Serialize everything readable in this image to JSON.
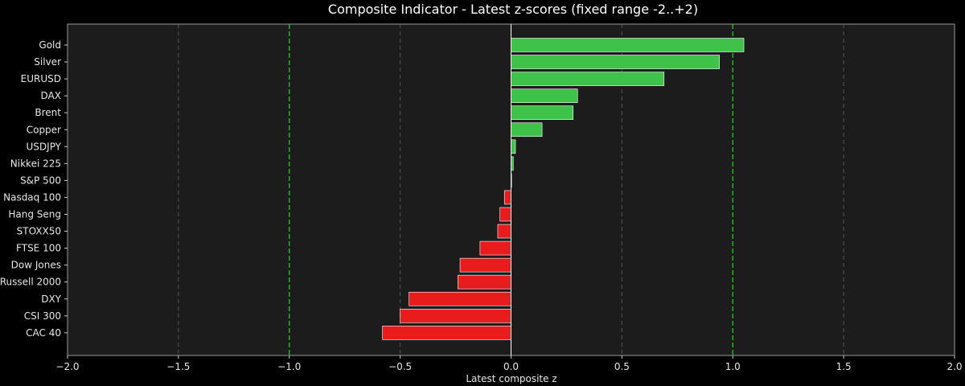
{
  "chart_data": {
    "type": "bar",
    "orientation": "horizontal",
    "title": "Composite Indicator - Latest z-scores (fixed range -2..+2)",
    "xlabel": "Latest composite z",
    "ylabel": "",
    "xlim": [
      -2.0,
      2.0
    ],
    "xticks": [
      -2.0,
      -1.5,
      -1.0,
      -0.5,
      0.0,
      0.5,
      1.0,
      1.5,
      2.0
    ],
    "xtick_labels": [
      "−2.0",
      "−1.5",
      "−1.0",
      "−0.5",
      "0.0",
      "0.5",
      "1.0",
      "1.5",
      "2.0"
    ],
    "categories": [
      "Gold",
      "Silver",
      "EURUSD",
      "DAX",
      "Brent",
      "Copper",
      "USDJPY",
      "Nikkei 225",
      "S&P 500",
      "Nasdaq 100",
      "Hang Seng",
      "STOXX50",
      "FTSE 100",
      "Dow Jones",
      "Russell 2000",
      "DXY",
      "CSI 300",
      "CAC 40"
    ],
    "values": [
      1.05,
      0.94,
      0.69,
      0.3,
      0.28,
      0.14,
      0.02,
      0.01,
      0.0,
      -0.03,
      -0.05,
      -0.06,
      -0.14,
      -0.23,
      -0.24,
      -0.46,
      -0.5,
      -0.58
    ],
    "reference_lines": [
      -1.0,
      1.0
    ],
    "grid": true,
    "colors": {
      "positive": "#3fc24a",
      "negative": "#e81c1c",
      "background": "#000000",
      "plot_background": "#1c1c1c",
      "reference_line": "#22cc22",
      "zero_line": "#ffffff",
      "grid": "#555555",
      "text": "#e6e6e6"
    }
  }
}
